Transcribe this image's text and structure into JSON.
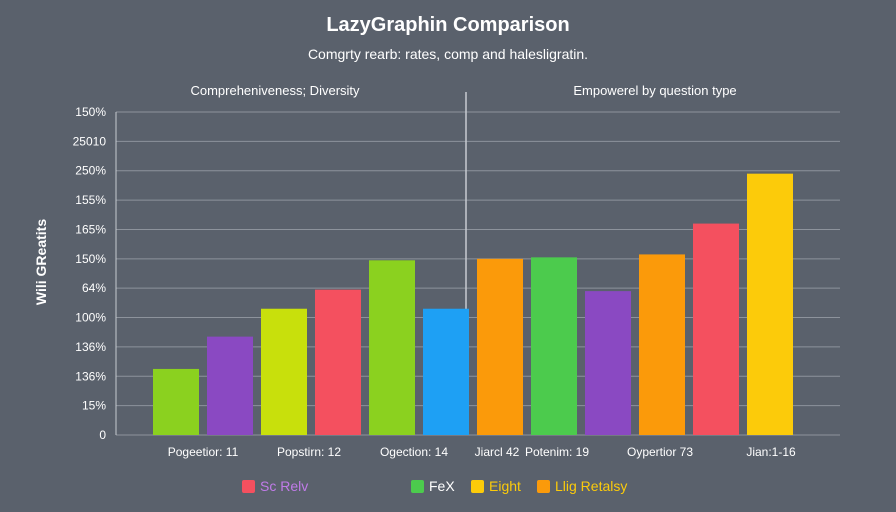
{
  "chart_data": {
    "type": "bar",
    "title": "LazyGraphin Comparison",
    "subtitle": "Comgrty rearb: rates, comp and halesligratin.",
    "panel_labels": [
      "Compreheniveness; Diversity",
      "Empowerel by question type"
    ],
    "ylabel": "Wili GReatits",
    "y_tick_labels": [
      "0",
      "15%",
      "136%",
      "136%",
      "100%",
      "64%",
      "150%",
      "165%",
      "155%",
      "250%",
      "25010",
      "150%"
    ],
    "ylim": [
      0,
      11
    ],
    "grid": true,
    "x_tick_labels": [
      "Pogeetior: 11",
      "Popstirn: 12",
      "Ogection: 14",
      "Jiarcl 42",
      "Potenim: 19",
      "Oypertior 73",
      "Jian:1-16"
    ],
    "bars": [
      {
        "value": 2.25,
        "color": "#8bd11f"
      },
      {
        "value": 3.35,
        "color": "#8a49c2"
      },
      {
        "value": 4.3,
        "color": "#c8e00c"
      },
      {
        "value": 4.95,
        "color": "#f4505f"
      },
      {
        "value": 5.95,
        "color": "#8bd11f"
      },
      {
        "value": 4.3,
        "color": "#1ea0f4"
      },
      {
        "value": 6.0,
        "color": "#fb9a0a"
      },
      {
        "value": 6.05,
        "color": "#4ccb4d"
      },
      {
        "value": 4.9,
        "color": "#8a49c2"
      },
      {
        "value": 6.15,
        "color": "#fb9a0a"
      },
      {
        "value": 7.2,
        "color": "#f4505f"
      },
      {
        "value": 8.9,
        "color": "#fccb0a"
      }
    ],
    "legend": [
      {
        "name": "Sc Relv",
        "color": "#f4505f",
        "text_color": "#c07be8"
      },
      {
        "name": "FeX",
        "color": "#4ccb4d",
        "text_color": "#ffffff"
      },
      {
        "name": "Eight",
        "color": "#fccb0a",
        "text_color": "#fccb0a"
      },
      {
        "name": "Llig Retalsy",
        "color": "#fb9a0a",
        "text_color": "#fccb0a"
      }
    ]
  }
}
